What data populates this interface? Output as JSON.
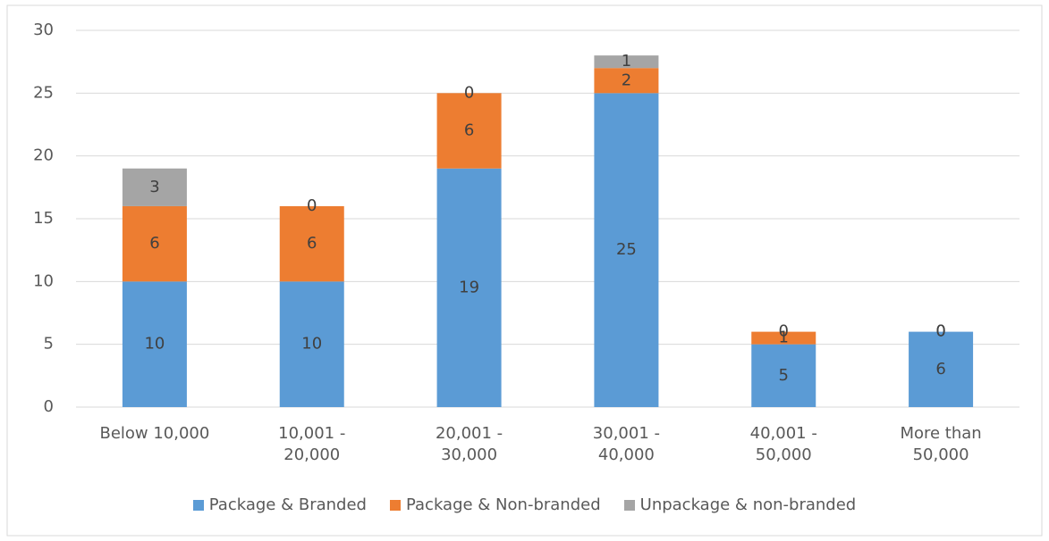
{
  "chart_data": {
    "type": "stacked_bar",
    "categories": [
      "Below 10,000",
      "10,001 - 20,000",
      "20,001 - 30,000",
      "30,001 - 40,000",
      "40,001 - 50,000",
      "More than 50,000"
    ],
    "series": [
      {
        "name": "Package & Branded",
        "color": "#5b9bd5",
        "values": [
          10,
          10,
          19,
          25,
          5,
          6
        ]
      },
      {
        "name": "Package & Non-branded",
        "color": "#ed7d31",
        "values": [
          6,
          6,
          6,
          2,
          1,
          0
        ]
      },
      {
        "name": "Unpackage & non-branded",
        "color": "#a5a5a5",
        "values": [
          3,
          0,
          0,
          1,
          0,
          0
        ]
      }
    ],
    "ylim": [
      0,
      30
    ],
    "yticks": [
      0,
      5,
      10,
      15,
      20,
      25,
      30
    ],
    "grid": true,
    "legend": "bottom"
  }
}
